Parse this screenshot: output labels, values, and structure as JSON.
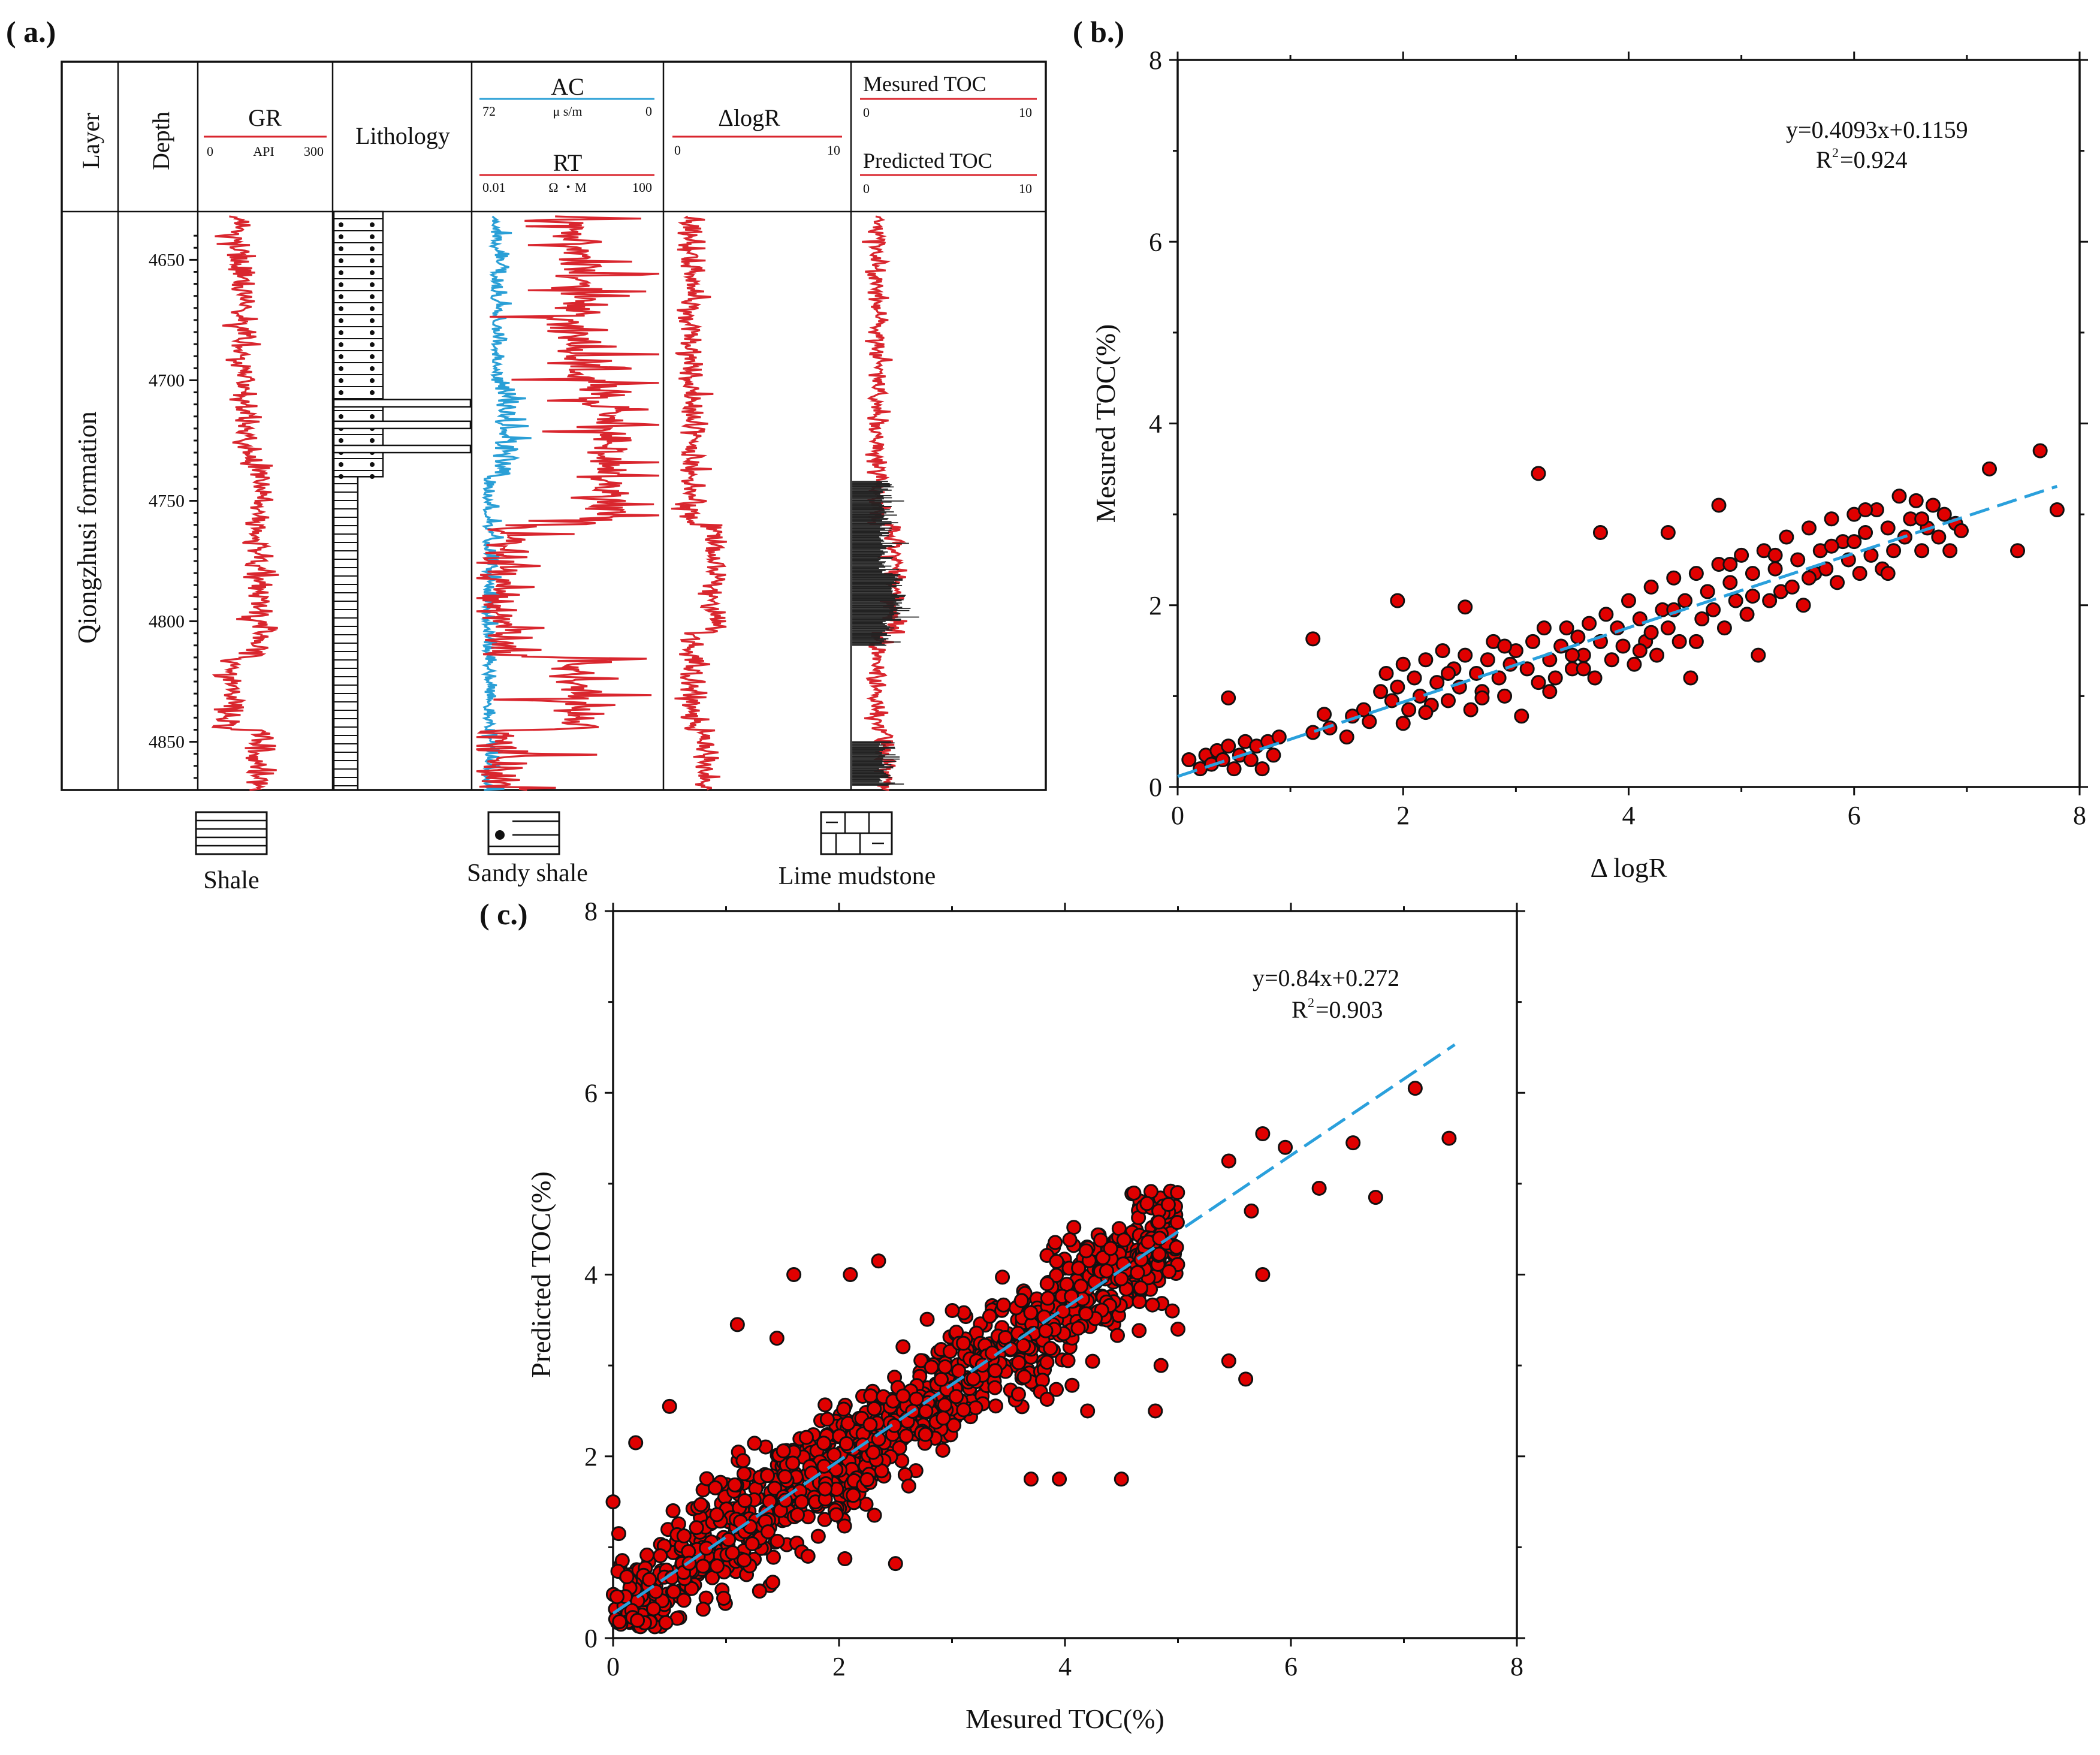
{
  "panel_a": {
    "label": "( a.)",
    "headers": {
      "layer": "Layer",
      "depth": "Depth",
      "gr": {
        "title": "GR",
        "min": "0",
        "unit": "API",
        "max": "300"
      },
      "lithology": "Lithology",
      "ac": {
        "title": "AC",
        "min": "72",
        "unit": "μ s/m",
        "max": "0"
      },
      "rt": {
        "title": "RT",
        "min": "0.01",
        "unit": "Ω ・M",
        "max": "100"
      },
      "dlogr": {
        "title": "ΔlogR",
        "min": "0",
        "max": "10"
      },
      "measured_toc": {
        "title": "Mesured TOC",
        "min": "0",
        "max": "10"
      },
      "predicted_toc": {
        "title": "Predicted TOC",
        "min": "0",
        "max": "10"
      }
    },
    "formation": "Qiongzhusi formation",
    "depth_ticks": [
      "4650",
      "4700",
      "4750",
      "4800",
      "4850"
    ],
    "depth_range": [
      4630,
      4870
    ],
    "colors": {
      "red_curve": "#d9262e",
      "blue_curve": "#2a9fd6"
    },
    "legend": [
      {
        "icon": "shale-pattern-icon",
        "label": "Shale"
      },
      {
        "icon": "sandy-shale-pattern-icon",
        "label": "Sandy shale"
      },
      {
        "icon": "lime-mudstone-pattern-icon",
        "label": "Lime mudstone"
      }
    ]
  },
  "panel_b": {
    "label": "( b.)",
    "equation": "y=0.4093x+0.1159",
    "r2_label": "R",
    "r2_sup": "2",
    "r2_value": "=0.924"
  },
  "panel_c": {
    "label": "( c.)",
    "equation": "y=0.84x+0.272",
    "r2_label": "R",
    "r2_sup": "2",
    "r2_value": "=0.903"
  },
  "chart_data": [
    {
      "type": "scatter",
      "title": "",
      "xlabel": "Δ logR",
      "ylabel": "Mesured TOC(%)",
      "xlim": [
        0,
        8
      ],
      "ylim": [
        0,
        8
      ],
      "xticks": [
        "0",
        "2",
        "4",
        "6",
        "8"
      ],
      "yticks": [
        "0",
        "2",
        "4",
        "6",
        "8"
      ],
      "fit": {
        "slope": 0.4093,
        "intercept": 0.1159,
        "x_range": [
          0,
          7.8
        ]
      },
      "points": [
        [
          0.1,
          0.3
        ],
        [
          0.2,
          0.2
        ],
        [
          0.25,
          0.35
        ],
        [
          0.3,
          0.25
        ],
        [
          0.35,
          0.4
        ],
        [
          0.4,
          0.3
        ],
        [
          0.45,
          0.45
        ],
        [
          0.5,
          0.2
        ],
        [
          0.55,
          0.35
        ],
        [
          0.6,
          0.5
        ],
        [
          0.65,
          0.3
        ],
        [
          0.7,
          0.45
        ],
        [
          0.75,
          0.2
        ],
        [
          0.8,
          0.5
        ],
        [
          0.85,
          0.35
        ],
        [
          0.9,
          0.55
        ],
        [
          0.45,
          0.98
        ],
        [
          1.2,
          0.6
        ],
        [
          1.3,
          0.8
        ],
        [
          1.35,
          0.65
        ],
        [
          1.5,
          0.55
        ],
        [
          1.55,
          0.78
        ],
        [
          1.65,
          0.85
        ],
        [
          1.2,
          1.63
        ],
        [
          1.95,
          2.05
        ],
        [
          2.55,
          1.98
        ],
        [
          1.8,
          1.05
        ],
        [
          1.85,
          1.25
        ],
        [
          1.9,
          0.95
        ],
        [
          1.95,
          1.1
        ],
        [
          2.0,
          1.35
        ],
        [
          2.05,
          0.85
        ],
        [
          2.1,
          1.2
        ],
        [
          2.15,
          1.0
        ],
        [
          2.2,
          1.4
        ],
        [
          2.25,
          0.9
        ],
        [
          2.3,
          1.15
        ],
        [
          2.35,
          1.5
        ],
        [
          2.4,
          0.95
        ],
        [
          2.45,
          1.3
        ],
        [
          2.5,
          1.1
        ],
        [
          2.55,
          1.45
        ],
        [
          2.6,
          0.85
        ],
        [
          2.65,
          1.25
        ],
        [
          2.7,
          1.05
        ],
        [
          2.75,
          1.4
        ],
        [
          2.8,
          1.6
        ],
        [
          2.85,
          1.2
        ],
        [
          2.9,
          1.0
        ],
        [
          2.95,
          1.35
        ],
        [
          3.0,
          1.5
        ],
        [
          3.05,
          0.78
        ],
        [
          3.1,
          1.3
        ],
        [
          3.15,
          1.6
        ],
        [
          3.2,
          1.15
        ],
        [
          3.25,
          1.75
        ],
        [
          3.3,
          1.4
        ],
        [
          3.35,
          1.2
        ],
        [
          3.4,
          1.55
        ],
        [
          3.45,
          1.75
        ],
        [
          3.5,
          1.3
        ],
        [
          3.55,
          1.65
        ],
        [
          3.6,
          1.45
        ],
        [
          3.65,
          1.8
        ],
        [
          3.7,
          1.2
        ],
        [
          3.75,
          1.6
        ],
        [
          3.8,
          1.9
        ],
        [
          3.85,
          1.4
        ],
        [
          3.9,
          1.75
        ],
        [
          3.95,
          1.55
        ],
        [
          4.0,
          2.05
        ],
        [
          4.05,
          1.35
        ],
        [
          4.1,
          1.85
        ],
        [
          4.15,
          1.6
        ],
        [
          4.2,
          2.2
        ],
        [
          4.25,
          1.45
        ],
        [
          4.3,
          1.95
        ],
        [
          4.35,
          1.75
        ],
        [
          4.4,
          2.3
        ],
        [
          4.45,
          1.6
        ],
        [
          4.5,
          2.05
        ],
        [
          4.55,
          1.2
        ],
        [
          4.6,
          2.35
        ],
        [
          4.65,
          1.85
        ],
        [
          4.7,
          2.15
        ],
        [
          4.75,
          1.95
        ],
        [
          4.8,
          2.45
        ],
        [
          4.85,
          1.75
        ],
        [
          4.9,
          2.25
        ],
        [
          4.95,
          2.05
        ],
        [
          5.0,
          2.55
        ],
        [
          5.05,
          1.9
        ],
        [
          5.1,
          2.35
        ],
        [
          5.15,
          1.45
        ],
        [
          5.2,
          2.6
        ],
        [
          5.25,
          2.05
        ],
        [
          5.3,
          2.4
        ],
        [
          5.35,
          2.15
        ],
        [
          5.4,
          2.75
        ],
        [
          5.45,
          2.2
        ],
        [
          5.5,
          2.5
        ],
        [
          5.55,
          2.0
        ],
        [
          5.6,
          2.85
        ],
        [
          5.65,
          2.35
        ],
        [
          5.7,
          2.6
        ],
        [
          5.75,
          2.4
        ],
        [
          5.8,
          2.95
        ],
        [
          5.85,
          2.25
        ],
        [
          5.9,
          2.7
        ],
        [
          5.95,
          2.5
        ],
        [
          6.0,
          3.0
        ],
        [
          6.05,
          2.35
        ],
        [
          6.1,
          2.8
        ],
        [
          6.15,
          2.55
        ],
        [
          6.2,
          3.05
        ],
        [
          6.25,
          2.4
        ],
        [
          6.3,
          2.85
        ],
        [
          6.35,
          2.6
        ],
        [
          6.4,
          3.2
        ],
        [
          6.45,
          2.75
        ],
        [
          6.5,
          2.95
        ],
        [
          6.55,
          3.15
        ],
        [
          6.6,
          2.6
        ],
        [
          6.65,
          2.85
        ],
        [
          6.7,
          3.1
        ],
        [
          6.75,
          2.75
        ],
        [
          6.8,
          3.0
        ],
        [
          6.85,
          2.6
        ],
        [
          6.9,
          2.9
        ],
        [
          6.95,
          2.82
        ],
        [
          3.2,
          3.45
        ],
        [
          3.75,
          2.8
        ],
        [
          4.35,
          2.8
        ],
        [
          4.8,
          3.1
        ],
        [
          7.2,
          3.5
        ],
        [
          7.65,
          3.7
        ],
        [
          7.45,
          2.6
        ],
        [
          7.8,
          3.05
        ],
        [
          2.0,
          0.7
        ],
        [
          2.4,
          1.25
        ],
        [
          2.9,
          1.55
        ],
        [
          3.3,
          1.05
        ],
        [
          3.6,
          1.3
        ],
        [
          4.2,
          1.7
        ],
        [
          4.6,
          1.6
        ],
        [
          5.1,
          2.1
        ],
        [
          5.6,
          2.3
        ],
        [
          6.0,
          2.7
        ],
        [
          6.3,
          2.35
        ],
        [
          1.7,
          0.72
        ],
        [
          2.2,
          0.82
        ],
        [
          2.7,
          0.98
        ],
        [
          3.5,
          1.45
        ],
        [
          4.1,
          1.5
        ],
        [
          4.4,
          1.95
        ],
        [
          4.9,
          2.45
        ],
        [
          5.3,
          2.55
        ],
        [
          5.8,
          2.65
        ],
        [
          6.1,
          3.05
        ],
        [
          6.6,
          2.95
        ]
      ]
    },
    {
      "type": "scatter",
      "title": "",
      "xlabel": "Mesured TOC(%)",
      "ylabel": "Predicted TOC(%)",
      "xlim": [
        0,
        8
      ],
      "ylim": [
        0,
        8
      ],
      "xticks": [
        "0",
        "2",
        "4",
        "6",
        "8"
      ],
      "yticks": [
        "0",
        "2",
        "4",
        "6",
        "8"
      ],
      "fit": {
        "slope": 0.84,
        "intercept": 0.272,
        "x_range": [
          0,
          7.45
        ]
      },
      "points_note": "dense cloud of ~1000 points along fit line for x in 0–5 with scatter ±0.6, plus outliers",
      "outliers": [
        [
          0.0,
          1.5
        ],
        [
          0.05,
          1.15
        ],
        [
          0.2,
          2.15
        ],
        [
          0.5,
          2.55
        ],
        [
          1.1,
          3.45
        ],
        [
          1.45,
          3.3
        ],
        [
          1.6,
          4.0
        ],
        [
          2.1,
          4.0
        ],
        [
          2.35,
          4.15
        ],
        [
          2.5,
          0.82
        ],
        [
          4.95,
          3.6
        ],
        [
          5.0,
          3.4
        ],
        [
          5.45,
          5.25
        ],
        [
          5.45,
          3.05
        ],
        [
          5.6,
          2.85
        ],
        [
          5.65,
          4.7
        ],
        [
          5.75,
          5.55
        ],
        [
          5.75,
          4.0
        ],
        [
          5.95,
          5.4
        ],
        [
          6.25,
          4.95
        ],
        [
          6.55,
          5.45
        ],
        [
          6.75,
          4.85
        ],
        [
          7.1,
          6.05
        ],
        [
          7.4,
          5.5
        ],
        [
          3.7,
          1.75
        ],
        [
          3.95,
          1.75
        ],
        [
          4.5,
          1.75
        ],
        [
          4.2,
          2.5
        ],
        [
          4.8,
          2.5
        ],
        [
          4.85,
          3.0
        ]
      ]
    }
  ]
}
